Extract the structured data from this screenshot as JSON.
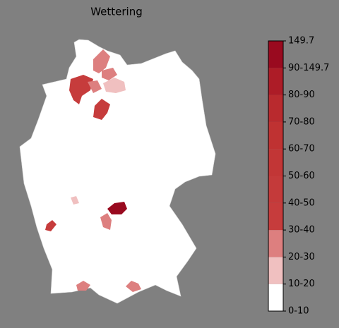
{
  "title": "Wettering",
  "colorbar": {
    "labels": [
      "0-10",
      "10-20",
      "20-30",
      "30-40",
      "40-50",
      "50-60",
      "60-70",
      "70-80",
      "80-90",
      "90-149.7",
      "149.7"
    ],
    "colors": [
      "#ffffff",
      "#f0c0c0",
      "#dd7f7f",
      "#c63c3c",
      "#c43a3a",
      "#c23636",
      "#bf3232",
      "#b92a2e",
      "#ad1c27",
      "#990a1f"
    ]
  }
}
